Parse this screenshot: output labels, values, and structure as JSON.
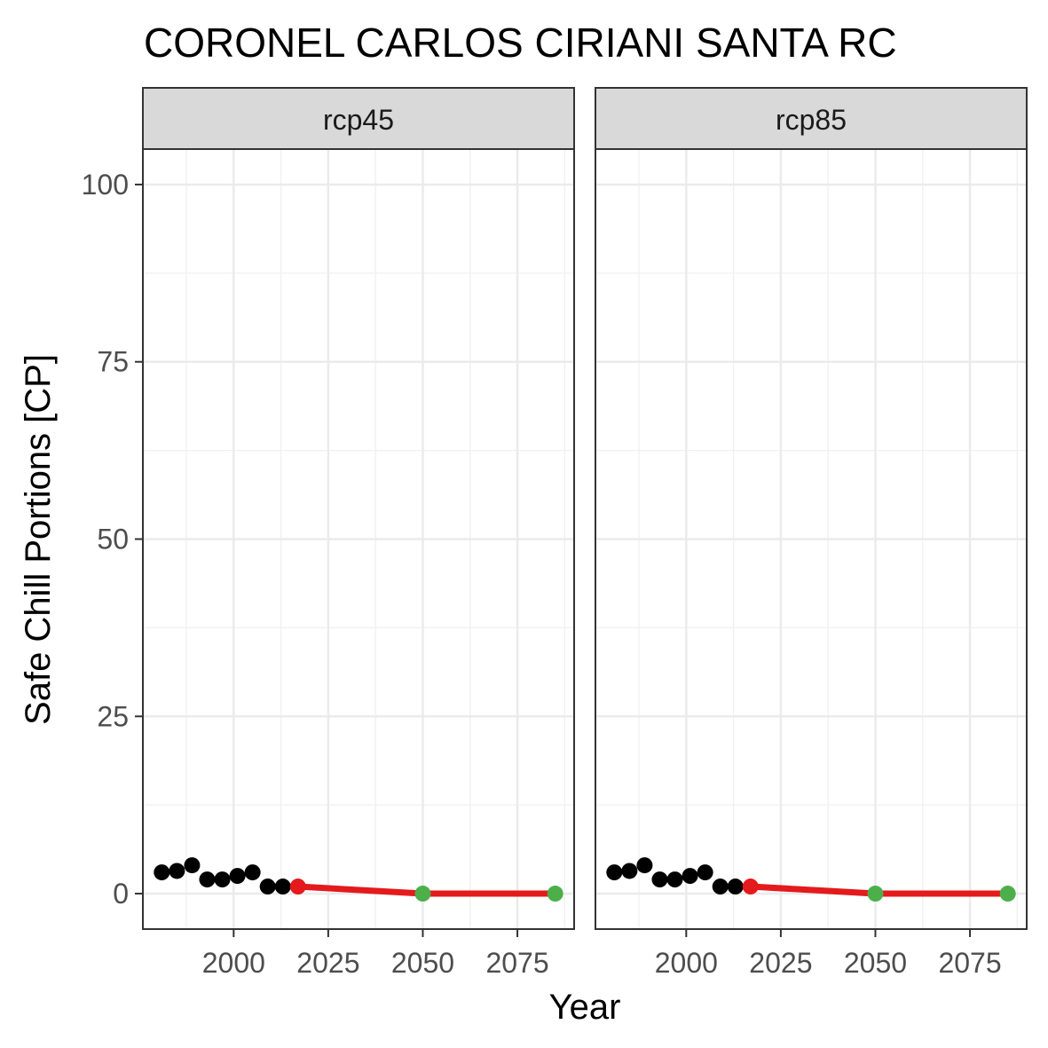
{
  "chart_data": {
    "type": "line",
    "title": "CORONEL CARLOS CIRIANI SANTA RC",
    "xlabel": "Year",
    "ylabel": "Safe Chill Portions [CP]",
    "xlim": [
      1976,
      2090
    ],
    "ylim": [
      -5,
      105
    ],
    "x_ticks": [
      2000,
      2025,
      2050,
      2075
    ],
    "y_ticks": [
      0,
      25,
      50,
      75,
      100
    ],
    "grid": true,
    "colors": {
      "historic": "#000000",
      "projection": "#e41a1c",
      "future_point": "#4daf4a"
    },
    "panels": [
      {
        "label": "rcp45",
        "historic": {
          "x": [
            1981,
            1985,
            1989,
            1993,
            1997,
            2001,
            2005,
            2009,
            2013
          ],
          "y": [
            3,
            3.2,
            4,
            2,
            2,
            2.5,
            3,
            1,
            1
          ]
        },
        "projection": {
          "x": [
            2017,
            2050,
            2085
          ],
          "y": [
            1,
            0,
            0
          ]
        },
        "future_points": {
          "x": [
            2050,
            2085
          ],
          "y": [
            0,
            0
          ]
        }
      },
      {
        "label": "rcp85",
        "historic": {
          "x": [
            1981,
            1985,
            1989,
            1993,
            1997,
            2001,
            2005,
            2009,
            2013
          ],
          "y": [
            3,
            3.2,
            4,
            2,
            2,
            2.5,
            3,
            1,
            1
          ]
        },
        "projection": {
          "x": [
            2017,
            2050,
            2085
          ],
          "y": [
            1,
            0,
            0
          ]
        },
        "future_points": {
          "x": [
            2050,
            2085
          ],
          "y": [
            0,
            0
          ]
        }
      }
    ]
  }
}
